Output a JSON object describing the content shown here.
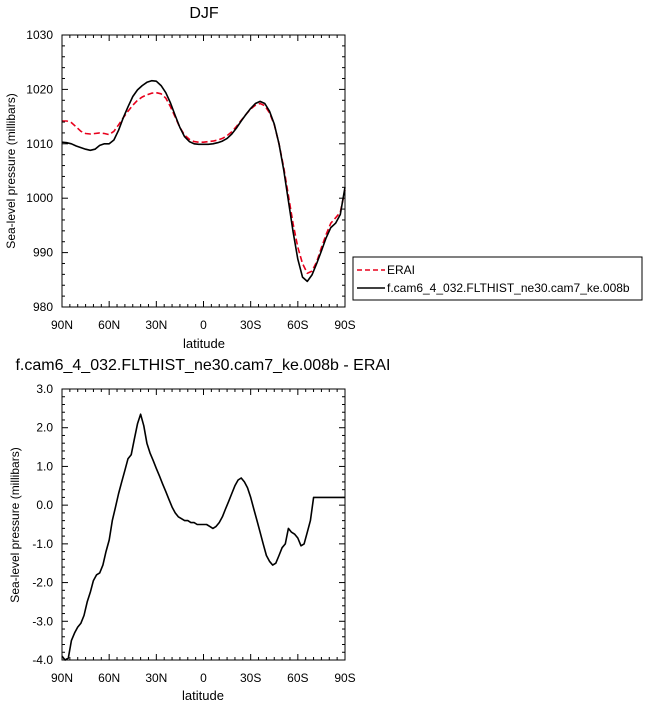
{
  "chart_data": [
    {
      "type": "line",
      "title": "DJF",
      "xlabel": "latitude",
      "ylabel": "Sea-level pressure (millibars)",
      "xlim": [
        90,
        -90
      ],
      "ylim": [
        980,
        1030
      ],
      "x_ticks": [
        {
          "value": 90,
          "label": "90N"
        },
        {
          "value": 60,
          "label": "60N"
        },
        {
          "value": 30,
          "label": "30N"
        },
        {
          "value": 0,
          "label": "0"
        },
        {
          "value": -30,
          "label": "30S"
        },
        {
          "value": -60,
          "label": "60S"
        },
        {
          "value": -90,
          "label": "90S"
        }
      ],
      "y_ticks": [
        {
          "value": 980,
          "label": "980"
        },
        {
          "value": 990,
          "label": "990"
        },
        {
          "value": 1000,
          "label": "1000"
        },
        {
          "value": 1010,
          "label": "1010"
        },
        {
          "value": 1020,
          "label": "1020"
        },
        {
          "value": 1030,
          "label": "1030"
        }
      ],
      "legend": {
        "placement": "right"
      },
      "series": [
        {
          "name": "ERAI",
          "color": "#e8001c",
          "dash": "dashed",
          "x": [
            90,
            87,
            84,
            81,
            78,
            75,
            72,
            69,
            66,
            63,
            60,
            57,
            54,
            51,
            48,
            45,
            42,
            39,
            36,
            33,
            30,
            27,
            24,
            21,
            18,
            15,
            12,
            9,
            6,
            3,
            0,
            -3,
            -6,
            -9,
            -12,
            -15,
            -18,
            -21,
            -24,
            -27,
            -30,
            -33,
            -36,
            -39,
            -42,
            -45,
            -48,
            -51,
            -54,
            -57,
            -60,
            -63,
            -66,
            -69,
            -72,
            -75,
            -78,
            -81,
            -84,
            -87,
            -90
          ],
          "y": [
            1014.2,
            1014.2,
            1013.9,
            1013.1,
            1012.3,
            1011.9,
            1011.8,
            1011.9,
            1012.0,
            1011.9,
            1011.7,
            1012.3,
            1013.5,
            1014.8,
            1016.0,
            1017.1,
            1018.0,
            1018.6,
            1019.0,
            1019.3,
            1019.4,
            1019.2,
            1018.4,
            1016.8,
            1014.9,
            1013.0,
            1011.6,
            1010.8,
            1010.4,
            1010.3,
            1010.3,
            1010.4,
            1010.5,
            1010.7,
            1011.0,
            1011.5,
            1012.2,
            1013.2,
            1014.3,
            1015.4,
            1016.4,
            1017.1,
            1017.4,
            1017.0,
            1015.7,
            1013.5,
            1010.0,
            1005.7,
            1000.5,
            995.3,
            991.0,
            988.0,
            986.2,
            986.6,
            988.3,
            990.9,
            993.3,
            995.4,
            996.4,
            997.4,
            1001.5
          ]
        },
        {
          "name": "f.cam6_4_032.FLTHIST_ne30.cam7_ke.008b",
          "color": "#000000",
          "dash": "solid",
          "x": [
            90,
            87,
            84,
            81,
            78,
            75,
            72,
            69,
            66,
            63,
            60,
            57,
            54,
            51,
            48,
            45,
            42,
            39,
            36,
            33,
            30,
            27,
            24,
            21,
            18,
            15,
            12,
            9,
            6,
            3,
            0,
            -3,
            -6,
            -9,
            -12,
            -15,
            -18,
            -21,
            -24,
            -27,
            -30,
            -33,
            -36,
            -39,
            -42,
            -45,
            -48,
            -51,
            -54,
            -57,
            -60,
            -63,
            -66,
            -69,
            -72,
            -75,
            -78,
            -81,
            -84,
            -87,
            -90
          ],
          "y": [
            1010.3,
            1010.2,
            1010.0,
            1009.6,
            1009.3,
            1009.0,
            1008.8,
            1009.0,
            1009.7,
            1010.0,
            1010.0,
            1010.7,
            1012.5,
            1014.8,
            1016.8,
            1018.7,
            1019.9,
            1020.7,
            1021.3,
            1021.6,
            1021.5,
            1020.7,
            1019.4,
            1017.5,
            1015.2,
            1013.0,
            1011.3,
            1010.4,
            1010.0,
            1009.9,
            1009.9,
            1009.9,
            1010.0,
            1010.2,
            1010.5,
            1011.0,
            1011.8,
            1012.9,
            1014.2,
            1015.4,
            1016.5,
            1017.4,
            1017.8,
            1017.4,
            1016.0,
            1013.6,
            1010.0,
            1005.2,
            999.5,
            993.8,
            988.8,
            985.5,
            984.7,
            985.9,
            988.0,
            990.3,
            992.7,
            994.6,
            995.4,
            997.0,
            1002.0
          ]
        }
      ]
    },
    {
      "type": "line",
      "title": "f.cam6_4_032.FLTHIST_ne30.cam7_ke.008b - ERAI",
      "xlabel": "latitude",
      "ylabel": "Sea-level pressure (millibars)",
      "xlim": [
        90,
        -90
      ],
      "ylim": [
        -4.0,
        3.0
      ],
      "x_ticks": [
        {
          "value": 90,
          "label": "90N"
        },
        {
          "value": 60,
          "label": "60N"
        },
        {
          "value": 30,
          "label": "30N"
        },
        {
          "value": 0,
          "label": "0"
        },
        {
          "value": -30,
          "label": "30S"
        },
        {
          "value": -60,
          "label": "60S"
        },
        {
          "value": -90,
          "label": "90S"
        }
      ],
      "y_ticks": [
        {
          "value": -4.0,
          "label": "-4.0"
        },
        {
          "value": -3.0,
          "label": "-3.0"
        },
        {
          "value": -2.0,
          "label": "-2.0"
        },
        {
          "value": -1.0,
          "label": "-1.0"
        },
        {
          "value": 0.0,
          "label": "0.0"
        },
        {
          "value": 1.0,
          "label": "1.0"
        },
        {
          "value": 2.0,
          "label": "2.0"
        },
        {
          "value": 3.0,
          "label": "3.0"
        }
      ],
      "series": [
        {
          "color": "#000000",
          "dash": "solid",
          "x": [
            90,
            88,
            86,
            84,
            82,
            80,
            78,
            76,
            74,
            72,
            70,
            68,
            66,
            64,
            62,
            60,
            58,
            56,
            54,
            52,
            50,
            48,
            46,
            44,
            42,
            40,
            38,
            36,
            34,
            32,
            30,
            28,
            26,
            24,
            22,
            20,
            18,
            16,
            14,
            12,
            10,
            8,
            6,
            4,
            2,
            0,
            -2,
            -4,
            -6,
            -8,
            -10,
            -12,
            -14,
            -16,
            -18,
            -20,
            -22,
            -24,
            -26,
            -28,
            -30,
            -32,
            -34,
            -36,
            -38,
            -40,
            -42,
            -44,
            -46,
            -48,
            -50,
            -52,
            -54,
            -56,
            -58,
            -60,
            -62,
            -64,
            -66,
            -68,
            -70,
            -72,
            -74,
            -76,
            -78,
            -80,
            -82,
            -84,
            -86,
            -88,
            -90
          ],
          "y": [
            -3.9,
            -4.0,
            -3.95,
            -3.5,
            -3.3,
            -3.15,
            -3.05,
            -2.85,
            -2.5,
            -2.25,
            -1.95,
            -1.8,
            -1.75,
            -1.55,
            -1.2,
            -0.9,
            -0.4,
            -0.05,
            0.3,
            0.6,
            0.9,
            1.2,
            1.3,
            1.7,
            2.1,
            2.35,
            2.05,
            1.6,
            1.35,
            1.15,
            0.95,
            0.75,
            0.55,
            0.35,
            0.15,
            -0.05,
            -0.2,
            -0.3,
            -0.35,
            -0.4,
            -0.4,
            -0.45,
            -0.45,
            -0.5,
            -0.5,
            -0.5,
            -0.5,
            -0.55,
            -0.6,
            -0.55,
            -0.45,
            -0.3,
            -0.1,
            0.1,
            0.3,
            0.5,
            0.65,
            0.7,
            0.6,
            0.45,
            0.2,
            -0.1,
            -0.4,
            -0.7,
            -1.0,
            -1.3,
            -1.45,
            -1.55,
            -1.5,
            -1.3,
            -1.1,
            -1.0,
            -0.6,
            -0.7,
            -0.75,
            -0.85,
            -1.05,
            -1.0,
            -0.7,
            -0.4,
            0.2,
            0.2,
            0.2,
            0.2,
            0.2,
            0.2,
            0.2,
            0.2,
            0.2,
            0.2,
            0.2
          ]
        }
      ]
    }
  ]
}
